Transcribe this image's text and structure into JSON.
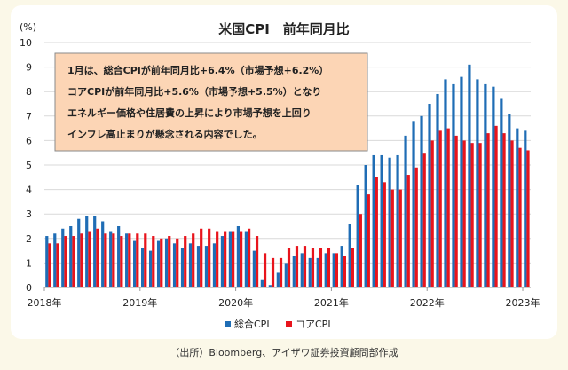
{
  "chart_data": {
    "type": "bar",
    "title": "米国CPI　前年同月比",
    "ylabel": "(%)",
    "ylim": [
      0,
      10
    ],
    "yticks": [
      0,
      1,
      2,
      3,
      4,
      5,
      6,
      7,
      8,
      9,
      10
    ],
    "xticks": [
      "2018年",
      "2019年",
      "2020年",
      "2021年",
      "2022年",
      "2023年"
    ],
    "grid": true,
    "legend": "bottom",
    "annotation": [
      "1月は、総合CPIが前年同月比+6.4%（市場予想+6.2%）",
      "コアCPIが前年同月比+5.6%（市場予想+5.5%）となり",
      "エネルギー価格や住居費の上昇により市場予想を上回り",
      "インフレ高止まりが懸念される内容でした。"
    ],
    "series": [
      {
        "name": "総合CPI",
        "color": "#1f6db5",
        "values": [
          2.1,
          2.2,
          2.4,
          2.5,
          2.8,
          2.9,
          2.9,
          2.7,
          2.3,
          2.5,
          2.2,
          1.9,
          1.6,
          1.5,
          1.9,
          2.0,
          1.8,
          1.6,
          1.8,
          1.7,
          1.7,
          1.8,
          2.1,
          2.3,
          2.5,
          2.3,
          1.5,
          0.3,
          0.1,
          0.6,
          1.0,
          1.3,
          1.4,
          1.2,
          1.2,
          1.4,
          1.4,
          1.7,
          2.6,
          4.2,
          5.0,
          5.4,
          5.4,
          5.3,
          5.4,
          6.2,
          6.8,
          7.0,
          7.5,
          7.9,
          8.5,
          8.3,
          8.6,
          9.1,
          8.5,
          8.3,
          8.2,
          7.7,
          7.1,
          6.5,
          6.4
        ],
        "start": "2018-01",
        "frequency": "monthly"
      },
      {
        "name": "コアCPI",
        "color": "#e8141c",
        "values": [
          1.8,
          1.8,
          2.1,
          2.1,
          2.2,
          2.3,
          2.4,
          2.2,
          2.2,
          2.1,
          2.2,
          2.2,
          2.2,
          2.1,
          2.0,
          2.1,
          2.0,
          2.1,
          2.2,
          2.4,
          2.4,
          2.3,
          2.3,
          2.3,
          2.3,
          2.4,
          2.1,
          1.4,
          1.2,
          1.2,
          1.6,
          1.7,
          1.7,
          1.6,
          1.6,
          1.6,
          1.4,
          1.3,
          1.6,
          3.0,
          3.8,
          4.5,
          4.3,
          4.0,
          4.0,
          4.6,
          4.9,
          5.5,
          6.0,
          6.4,
          6.5,
          6.2,
          6.0,
          5.9,
          5.9,
          6.3,
          6.6,
          6.3,
          6.0,
          5.7,
          5.6
        ],
        "start": "2018-01",
        "frequency": "monthly"
      }
    ],
    "source": "（出所）Bloomberg、アイザワ証券投資顧問部作成"
  }
}
